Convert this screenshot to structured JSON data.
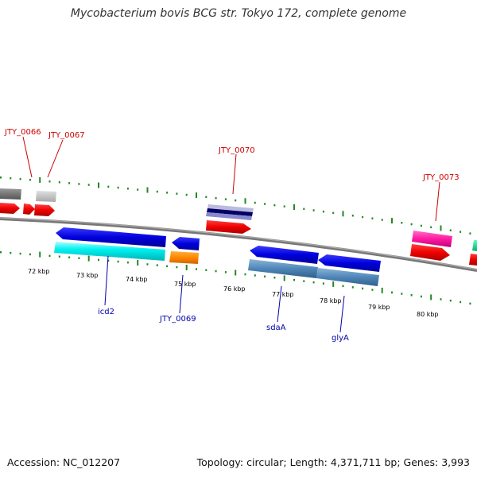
{
  "title": "Mycobacterium bovis BCG str. Tokyo 172, complete genome",
  "footer": {
    "accession": "Accession: NC_012207",
    "summary": "Topology: circular; Length: 4,371,711 bp; Genes: 3,993"
  },
  "ticks": [
    "72 kbp",
    "73 kbp",
    "74 kbp",
    "75 kbp",
    "76 kbp",
    "77 kbp",
    "78 kbp",
    "79 kbp",
    "80 kbp"
  ],
  "labels": {
    "jty_0066": "JTY_0066",
    "jty_0067": "JTY_0067",
    "jty_0070": "JTY_0070",
    "jty_0073": "JTY_0073",
    "icd2": "icd2",
    "jty_0069": "JTY_0069",
    "sdaA": "sdaA",
    "glyA": "glyA"
  },
  "colors": {
    "forward_label": "#cc0000",
    "reverse_label": "#0000aa",
    "tick_green": "#228822",
    "backbone": "#888888"
  }
}
